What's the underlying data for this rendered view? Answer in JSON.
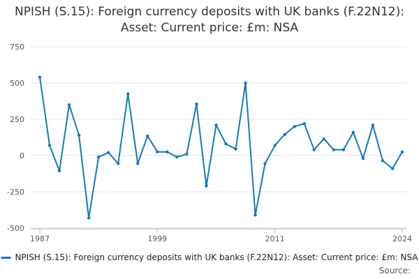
{
  "title": "NPISH (S.15): Foreign currency deposits with UK banks (F.22N12): Asset: Current price: £m: NSA",
  "source_label": "Source:",
  "colors": {
    "series": "#0f7bb8",
    "grid": "#e3e3e3",
    "axis": "#bbbbbb",
    "tick_text": "#555555"
  },
  "chart_data": {
    "type": "line",
    "title": "NPISH (S.15): Foreign currency deposits with UK banks (F.22N12): Asset: Current price: £m: NSA",
    "xlabel": "",
    "ylabel": "",
    "x_ticks": [
      "1987",
      "1999",
      "2011",
      "2024"
    ],
    "y_ticks": [
      750,
      500,
      250,
      0,
      -250,
      -500
    ],
    "ylim": [
      -500,
      750
    ],
    "xlim": [
      1987,
      2024
    ],
    "grid": true,
    "legend_position": "bottom",
    "series": [
      {
        "name": "NPISH (S.15): Foreign currency deposits with UK banks (F.22N12): Asset: Current price: £m: NSA",
        "x": [
          1987,
          1988,
          1989,
          1990,
          1991,
          1992,
          1993,
          1994,
          1995,
          1996,
          1997,
          1998,
          1999,
          2000,
          2001,
          2002,
          2003,
          2004,
          2005,
          2006,
          2007,
          2008,
          2009,
          2010,
          2011,
          2012,
          2013,
          2014,
          2015,
          2016,
          2017,
          2018,
          2019,
          2020,
          2021,
          2022,
          2023,
          2024
        ],
        "values": [
          540,
          70,
          -105,
          350,
          140,
          -430,
          -10,
          20,
          -55,
          425,
          -55,
          135,
          25,
          25,
          -10,
          10,
          355,
          -210,
          210,
          80,
          45,
          500,
          -410,
          -55,
          70,
          145,
          200,
          220,
          40,
          115,
          40,
          40,
          160,
          -20,
          210,
          -35,
          -90,
          25
        ]
      }
    ]
  }
}
